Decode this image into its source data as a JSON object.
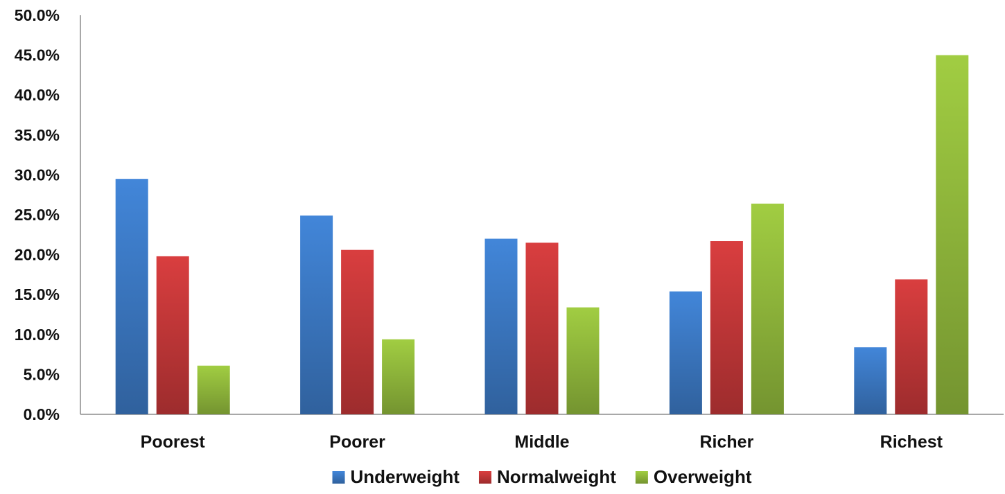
{
  "chart_data": {
    "type": "bar",
    "title": "",
    "xlabel": "",
    "ylabel": "",
    "categories": [
      "Poorest",
      "Poorer",
      "Middle",
      "Richer",
      "Richest"
    ],
    "series": [
      {
        "name": "Underweight",
        "color": "#3d7cc9",
        "values": [
          29.5,
          24.9,
          22.0,
          15.4,
          8.4
        ]
      },
      {
        "name": "Normalweight",
        "color": "#c9393a",
        "values": [
          19.8,
          20.6,
          21.5,
          21.7,
          16.9
        ]
      },
      {
        "name": "Overweight",
        "color": "#95be3d",
        "values": [
          6.1,
          9.4,
          13.4,
          26.4,
          45.0
        ]
      }
    ],
    "ylim": [
      0,
      50
    ],
    "yticks": [
      "0.0%",
      "5.0%",
      "10.0%",
      "15.0%",
      "20.0%",
      "25.0%",
      "30.0%",
      "35.0%",
      "40.0%",
      "45.0%",
      "50.0%"
    ],
    "grid": false,
    "legend_position": "bottom"
  }
}
